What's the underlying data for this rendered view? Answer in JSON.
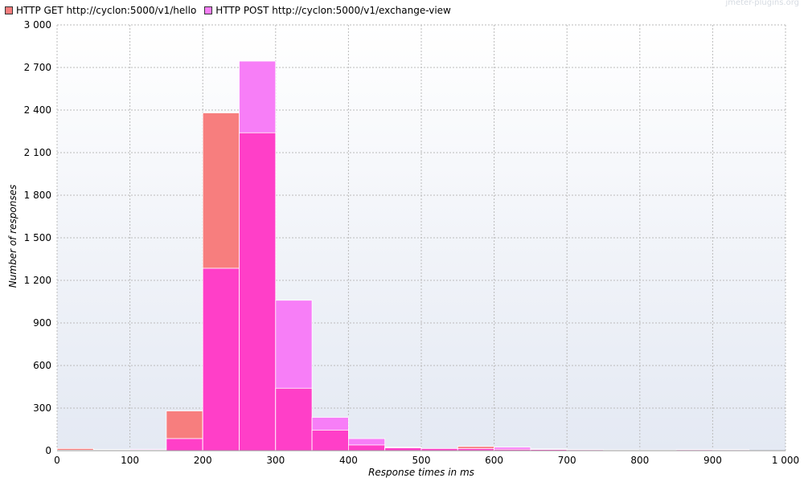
{
  "watermark": "jmeter-plugins.org",
  "chart_data": {
    "type": "bar",
    "xlabel": "Response times in ms",
    "ylabel": "Number of responses",
    "xlim": [
      0,
      1000
    ],
    "ylim": [
      0,
      3000
    ],
    "xticks": [
      0,
      100,
      200,
      300,
      400,
      500,
      600,
      700,
      800,
      900,
      1000
    ],
    "xtick_labels": [
      "0",
      "100",
      "200",
      "300",
      "400",
      "500",
      "600",
      "700",
      "800",
      "900",
      "1 000"
    ],
    "yticks": [
      0,
      300,
      600,
      900,
      1200,
      1500,
      1800,
      2100,
      2400,
      2700,
      3000
    ],
    "ytick_labels": [
      "0",
      "300",
      "600",
      "900",
      "1 200",
      "1 500",
      "1 800",
      "2 100",
      "2 400",
      "2 700",
      "3 000"
    ],
    "bin_width": 50,
    "x": [
      0,
      50,
      100,
      150,
      200,
      250,
      300,
      350,
      400,
      450,
      500,
      550,
      600,
      650,
      700,
      750,
      800,
      850,
      900,
      950
    ],
    "grid": true,
    "legend_position": "top-left",
    "series": [
      {
        "name": "HTTP GET http://cyclon:5000/v1/hello",
        "color": "#f77e7e",
        "values": [
          15,
          8,
          5,
          280,
          2380,
          2240,
          440,
          145,
          40,
          25,
          15,
          30,
          10,
          8,
          6,
          5,
          4,
          6,
          3,
          0
        ]
      },
      {
        "name": "HTTP POST http://cyclon:5000/v1/exchange-view",
        "color": "#f77ef7",
        "values": [
          3,
          5,
          10,
          85,
          1285,
          2745,
          1060,
          235,
          85,
          20,
          15,
          15,
          25,
          12,
          8,
          6,
          5,
          8,
          8,
          0
        ]
      }
    ],
    "overlap_color": "#ff3fc8"
  }
}
